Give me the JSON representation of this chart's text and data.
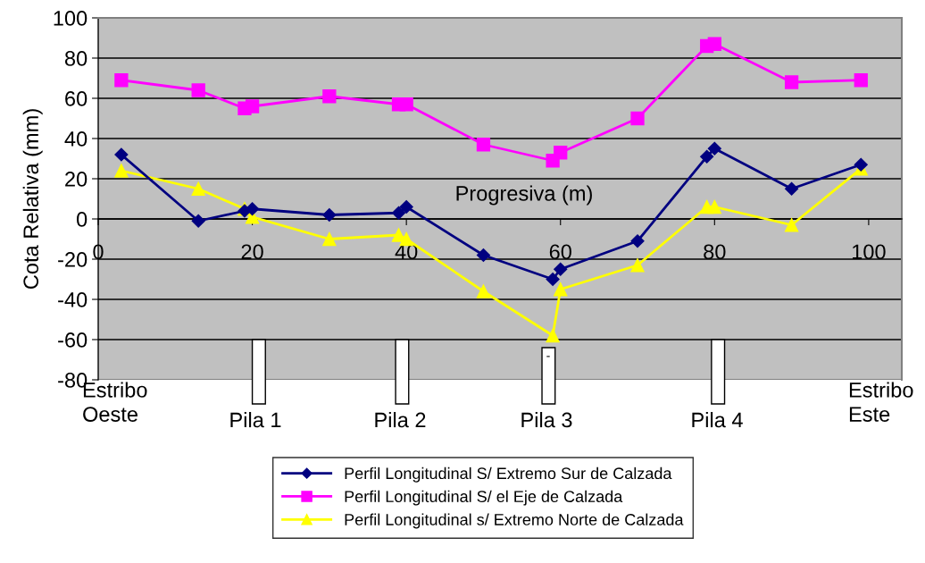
{
  "chart_data": {
    "type": "line",
    "xlabel": "Progresiva (m)",
    "ylabel": "Cota Relativa (mm)",
    "x": [
      3,
      13,
      19,
      20,
      30,
      39,
      40,
      50,
      59,
      60,
      70,
      79,
      80,
      90,
      99
    ],
    "series": [
      {
        "name": "Perfil Longitudinal S/ Extremo Sur de Calzada",
        "color": "#000080",
        "marker": "diamond",
        "values": [
          32,
          -1,
          4,
          5,
          2,
          3,
          6,
          -18,
          -30,
          -25,
          -11,
          31,
          35,
          15,
          27
        ]
      },
      {
        "name": "Perfil Longitudinal S/ el Eje de Calzada",
        "color": "#ff00ff",
        "marker": "square",
        "values": [
          69,
          64,
          55,
          56,
          61,
          57,
          57,
          37,
          29,
          33,
          50,
          86,
          87,
          68,
          69
        ]
      },
      {
        "name": "Perfil Longitudinal s/ Extremo Norte de Calzada",
        "color": "#ffff00",
        "marker": "triangle",
        "values": [
          24,
          15,
          5,
          1,
          -10,
          -8,
          -10,
          -36,
          -58,
          -35,
          -23,
          6,
          6,
          -3,
          25
        ]
      }
    ],
    "xlim": [
      0,
      104.3
    ],
    "xticks": [
      0,
      20,
      40,
      60,
      80,
      100
    ],
    "ylim": [
      -80,
      100
    ],
    "yticks": [
      -80,
      -60,
      -40,
      -20,
      0,
      20,
      40,
      60,
      80,
      100
    ],
    "grid": "y",
    "legend": "bottom",
    "line_style": "solid",
    "annotations": [
      "Estribo\nOeste",
      "Pila 1",
      "Pila 2",
      "Pila 3",
      "Pila 4",
      "Estribo\nEste",
      "-"
    ]
  }
}
